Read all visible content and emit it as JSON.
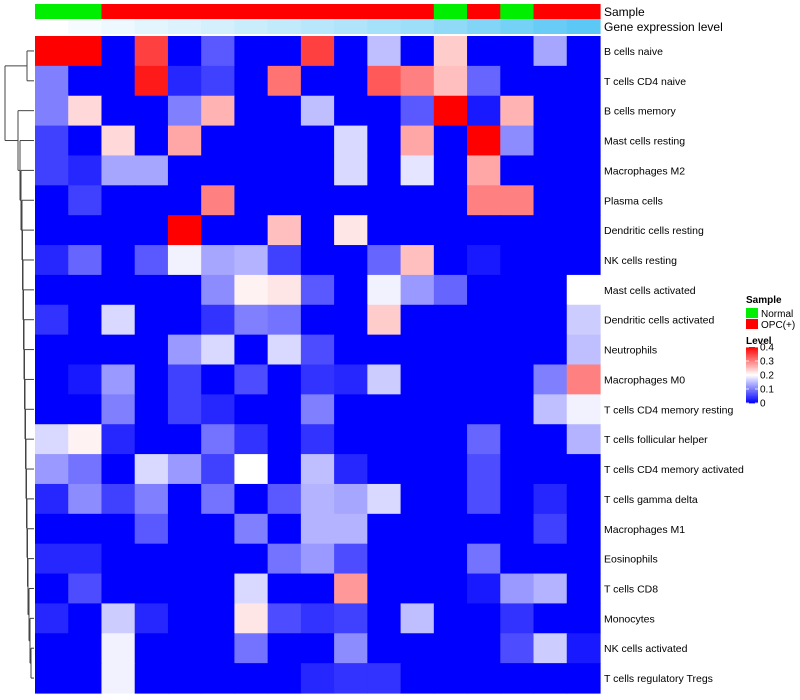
{
  "chart_data": {
    "type": "heatmap",
    "title": "",
    "xlabel": "",
    "ylabel": "",
    "rows": [
      "B cells naive",
      "T cells CD4 naive",
      "B cells memory",
      "Mast cells resting",
      "Macrophages M2",
      "Plasma cells",
      "Dendritic cells resting",
      "NK cells resting",
      "Mast cells activated",
      "Dendritic cells activated",
      "Neutrophils",
      "Macrophages M0",
      "T cells CD4 memory resting",
      "T cells follicular helper",
      "T cells CD4 memory activated",
      "T cells gamma delta",
      "Macrophages M1",
      "Eosinophils",
      "T cells CD8",
      "Monocytes",
      "NK cells activated",
      "T cells regulatory  Tregs"
    ],
    "annotations": [
      {
        "label": "Sample",
        "values": [
          "Normal",
          "Normal",
          "OPC(+)",
          "OPC(+)",
          "OPC(+)",
          "OPC(+)",
          "OPC(+)",
          "OPC(+)",
          "OPC(+)",
          "OPC(+)",
          "OPC(+)",
          "OPC(+)",
          "Normal",
          "OPC(+)",
          "Normal",
          "OPC(+)",
          "OPC(+)"
        ]
      },
      {
        "label": "Gene expression level",
        "values": [
          0.0,
          0.02,
          0.04,
          0.06,
          0.08,
          0.1,
          0.12,
          0.14,
          0.16,
          0.18,
          0.2,
          0.22,
          0.25,
          0.28,
          0.31,
          0.34,
          0.37
        ]
      }
    ],
    "values": [
      [
        0.4,
        0.4,
        0.0,
        0.35,
        0.0,
        0.07,
        0.0,
        0.0,
        0.35,
        0.0,
        0.15,
        0.0,
        0.24,
        0.0,
        0.0,
        0.13,
        0.0
      ],
      [
        0.1,
        0.0,
        0.0,
        0.38,
        0.03,
        0.05,
        0.0,
        0.31,
        0.0,
        0.0,
        0.33,
        0.3,
        0.25,
        0.08,
        0.0,
        0.0,
        0.0
      ],
      [
        0.1,
        0.23,
        0.0,
        0.0,
        0.1,
        0.26,
        0.0,
        0.0,
        0.15,
        0.0,
        0.0,
        0.07,
        0.4,
        0.02,
        0.26,
        0.0,
        0.0
      ],
      [
        0.05,
        0.0,
        0.23,
        0.0,
        0.27,
        0.0,
        0.0,
        0.0,
        0.0,
        0.17,
        0.0,
        0.27,
        0.0,
        0.4,
        0.11,
        0.0,
        0.0
      ],
      [
        0.05,
        0.03,
        0.13,
        0.13,
        0.0,
        0.0,
        0.0,
        0.0,
        0.0,
        0.17,
        0.0,
        0.18,
        0.0,
        0.27,
        0.0,
        0.0,
        0.0
      ],
      [
        0.0,
        0.05,
        0.0,
        0.0,
        0.0,
        0.3,
        0.0,
        0.0,
        0.0,
        0.0,
        0.0,
        0.0,
        0.0,
        0.3,
        0.3,
        0.0,
        0.0
      ],
      [
        0.0,
        0.0,
        0.0,
        0.0,
        0.4,
        0.0,
        0.0,
        0.25,
        0.0,
        0.22,
        0.0,
        0.0,
        0.0,
        0.0,
        0.0,
        0.0,
        0.0
      ],
      [
        0.03,
        0.08,
        0.0,
        0.07,
        0.19,
        0.13,
        0.14,
        0.05,
        0.0,
        0.0,
        0.08,
        0.25,
        0.0,
        0.02,
        0.0,
        0.0,
        0.0
      ],
      [
        0.0,
        0.0,
        0.0,
        0.0,
        0.0,
        0.11,
        0.21,
        0.22,
        0.07,
        0.0,
        0.19,
        0.12,
        0.08,
        0.0,
        0.0,
        0.0,
        0.2
      ],
      [
        0.04,
        0.0,
        0.17,
        0.0,
        0.0,
        0.04,
        0.1,
        0.09,
        0.0,
        0.0,
        0.24,
        0.0,
        0.0,
        0.0,
        0.0,
        0.0,
        0.16
      ],
      [
        0.0,
        0.0,
        0.0,
        0.0,
        0.12,
        0.17,
        0.0,
        0.17,
        0.06,
        0.0,
        0.0,
        0.0,
        0.0,
        0.0,
        0.0,
        0.0,
        0.15
      ],
      [
        0.0,
        0.02,
        0.12,
        0.0,
        0.05,
        0.0,
        0.06,
        0.0,
        0.04,
        0.03,
        0.16,
        0.0,
        0.0,
        0.0,
        0.0,
        0.1,
        0.3
      ],
      [
        0.0,
        0.0,
        0.1,
        0.0,
        0.05,
        0.03,
        0.0,
        0.0,
        0.1,
        0.0,
        0.0,
        0.0,
        0.0,
        0.0,
        0.0,
        0.15,
        0.19
      ],
      [
        0.17,
        0.21,
        0.03,
        0.0,
        0.0,
        0.09,
        0.04,
        0.0,
        0.04,
        0.0,
        0.0,
        0.0,
        0.0,
        0.08,
        0.0,
        0.0,
        0.14
      ],
      [
        0.12,
        0.09,
        0.0,
        0.17,
        0.12,
        0.05,
        0.2,
        0.0,
        0.15,
        0.03,
        0.0,
        0.0,
        0.0,
        0.06,
        0.0,
        0.0,
        0.0
      ],
      [
        0.03,
        0.11,
        0.05,
        0.1,
        0.0,
        0.09,
        0.0,
        0.07,
        0.14,
        0.13,
        0.17,
        0.0,
        0.0,
        0.06,
        0.0,
        0.03,
        0.0
      ],
      [
        0.0,
        0.0,
        0.0,
        0.07,
        0.0,
        0.0,
        0.1,
        0.0,
        0.14,
        0.14,
        0.0,
        0.0,
        0.0,
        0.0,
        0.0,
        0.05,
        0.0
      ],
      [
        0.03,
        0.03,
        0.0,
        0.0,
        0.0,
        0.0,
        0.0,
        0.09,
        0.12,
        0.06,
        0.0,
        0.0,
        0.0,
        0.09,
        0.0,
        0.0,
        0.0
      ],
      [
        0.0,
        0.06,
        0.0,
        0.0,
        0.0,
        0.0,
        0.17,
        0.0,
        0.0,
        0.28,
        0.0,
        0.0,
        0.0,
        0.02,
        0.12,
        0.14,
        0.0
      ],
      [
        0.03,
        0.0,
        0.16,
        0.03,
        0.0,
        0.0,
        0.22,
        0.06,
        0.04,
        0.05,
        0.0,
        0.15,
        0.0,
        0.0,
        0.04,
        0.0,
        0.0
      ],
      [
        0.0,
        0.0,
        0.19,
        0.0,
        0.0,
        0.0,
        0.09,
        0.0,
        0.0,
        0.11,
        0.0,
        0.0,
        0.0,
        0.0,
        0.06,
        0.16,
        0.02
      ],
      [
        0.0,
        0.0,
        0.19,
        0.0,
        0.0,
        0.0,
        0.0,
        0.0,
        0.03,
        0.04,
        0.04,
        0.0,
        0.0,
        0.0,
        0.0,
        0.0,
        0.0
      ]
    ],
    "legend": {
      "position": "right",
      "sample": {
        "title": "Sample",
        "items": [
          {
            "label": "Normal",
            "color": "#00ee00"
          },
          {
            "label": "OPC(+)",
            "color": "#ff0000"
          }
        ]
      },
      "level": {
        "title": "Level",
        "range": [
          0,
          0.4
        ],
        "ticks": [
          {
            "value": 0.4,
            "label": "0.4"
          },
          {
            "value": 0.3,
            "label": "0.3"
          },
          {
            "value": 0.2,
            "label": "0.2"
          },
          {
            "value": 0.1,
            "label": "0.1"
          },
          {
            "value": 0,
            "label": "0"
          }
        ]
      }
    },
    "colors": {
      "low": "#0000ff",
      "mid": "#ffffff",
      "high": "#ff0000",
      "normal": "#00ee00",
      "opc": "#ff0000",
      "annot_low": "#ffffff",
      "annot_high": "#5bc8f5"
    },
    "dendrogram": "rows"
  }
}
